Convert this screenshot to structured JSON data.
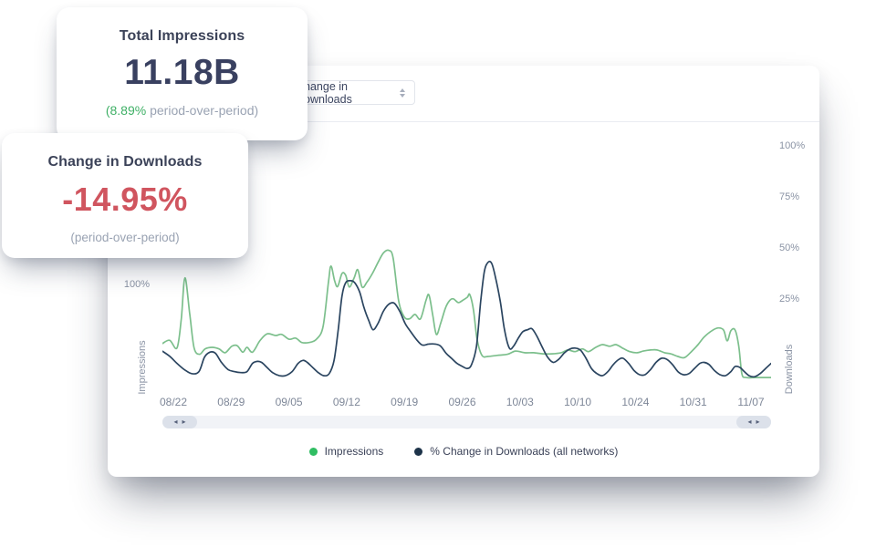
{
  "cards": {
    "impressions": {
      "title": "Total Impressions",
      "value": "11.18B",
      "delta_highlight": "(8.89%",
      "delta_rest": " period-over-period)"
    },
    "downloads": {
      "title": "Change in Downloads",
      "value": "-14.95%",
      "sub": "(period-over-period)"
    }
  },
  "panel": {
    "metric_select": {
      "value": "Change in Downloads"
    },
    "legend": [
      {
        "label": "Impressions",
        "color": "#2fbd62"
      },
      {
        "label": "% Change in Downloads (all networks)",
        "color": "#1d3349"
      }
    ],
    "scrollbar": {
      "arrows": [
        "◂",
        "▸"
      ]
    }
  },
  "chart_data": {
    "type": "line",
    "x_tick_labels": [
      "08/22",
      "08/29",
      "09/05",
      "09/12",
      "09/19",
      "09/26",
      "10/03",
      "10/10",
      "10/24",
      "10/31",
      "11/07"
    ],
    "axes": {
      "left": {
        "title": "Impressions",
        "unit": "%",
        "min": 0,
        "max": 237,
        "ticks": [
          {
            "value": 100,
            "label": "100%"
          }
        ]
      },
      "right": {
        "title": "Downloads",
        "unit": "%",
        "min": -20.5,
        "max": 104.5,
        "ticks": [
          {
            "value": 100,
            "label": "100%"
          },
          {
            "value": 75,
            "label": "75%"
          },
          {
            "value": 50,
            "label": "50%"
          },
          {
            "value": 25,
            "label": "25%"
          }
        ]
      }
    },
    "series": [
      {
        "name": "Impressions",
        "axis": "left",
        "color": "#7cbf8c",
        "points": [
          [
            0,
            45
          ],
          [
            1.2,
            48
          ],
          [
            2.4,
            41
          ],
          [
            3.1,
            68
          ],
          [
            3.7,
            106
          ],
          [
            4.5,
            72
          ],
          [
            5.2,
            41
          ],
          [
            6.1,
            35
          ],
          [
            7,
            40
          ],
          [
            8.2,
            41.5
          ],
          [
            9.3,
            40
          ],
          [
            10.3,
            36.5
          ],
          [
            11.4,
            42.5
          ],
          [
            12.3,
            43
          ],
          [
            13.2,
            37
          ],
          [
            13.9,
            41.5
          ],
          [
            14.8,
            37
          ],
          [
            16,
            47.5
          ],
          [
            17.2,
            54
          ],
          [
            18.6,
            52.5
          ],
          [
            19.6,
            53.5
          ],
          [
            20.8,
            49
          ],
          [
            21.9,
            50
          ],
          [
            22.9,
            46
          ],
          [
            24.1,
            46
          ],
          [
            25.3,
            49
          ],
          [
            26.4,
            61
          ],
          [
            27.3,
            103
          ],
          [
            27.7,
            117
          ],
          [
            28.3,
            103
          ],
          [
            28.8,
            98
          ],
          [
            29.5,
            110
          ],
          [
            30.1,
            108.5
          ],
          [
            30.7,
            97.5
          ],
          [
            31.5,
            106
          ],
          [
            32.1,
            113.5
          ],
          [
            32.8,
            97.5
          ],
          [
            33.6,
            102
          ],
          [
            34.5,
            110
          ],
          [
            35.4,
            120
          ],
          [
            36.3,
            129
          ],
          [
            37.2,
            131.5
          ],
          [
            37.9,
            124.5
          ],
          [
            38.8,
            85
          ],
          [
            39.7,
            70
          ],
          [
            40.6,
            68
          ],
          [
            41.5,
            72
          ],
          [
            42.4,
            68
          ],
          [
            43.3,
            85
          ],
          [
            43.8,
            90
          ],
          [
            44.4,
            72
          ],
          [
            45,
            53.5
          ],
          [
            45.7,
            63.5
          ],
          [
            46.5,
            78
          ],
          [
            47.2,
            85
          ],
          [
            47.8,
            86.5
          ],
          [
            48.6,
            83
          ],
          [
            49.3,
            85
          ],
          [
            50.1,
            88
          ],
          [
            50.5,
            90.5
          ],
          [
            51.1,
            76.5
          ],
          [
            51.7,
            49
          ],
          [
            52.5,
            34
          ],
          [
            53.5,
            33
          ],
          [
            55,
            34
          ],
          [
            56.7,
            35
          ],
          [
            58,
            38
          ],
          [
            59.5,
            36.5
          ],
          [
            61,
            36.5
          ],
          [
            62.5,
            35.5
          ],
          [
            64,
            35.5
          ],
          [
            65.5,
            36.5
          ],
          [
            66.6,
            39
          ],
          [
            67.8,
            37.5
          ],
          [
            69,
            40
          ],
          [
            70,
            37.5
          ],
          [
            71.2,
            41.5
          ],
          [
            72.3,
            44
          ],
          [
            73.5,
            42.5
          ],
          [
            74.5,
            44
          ],
          [
            75.7,
            40.5
          ],
          [
            76.8,
            37.5
          ],
          [
            78,
            36.5
          ],
          [
            79,
            38
          ],
          [
            80.2,
            39
          ],
          [
            81.3,
            39
          ],
          [
            82.5,
            36.5
          ],
          [
            83.5,
            35.5
          ],
          [
            84.7,
            33
          ],
          [
            85.8,
            32
          ],
          [
            87,
            38
          ],
          [
            88,
            44
          ],
          [
            89,
            51
          ],
          [
            90.3,
            57
          ],
          [
            91.3,
            59.5
          ],
          [
            92.2,
            57.5
          ],
          [
            92.8,
            47.5
          ],
          [
            93.4,
            57
          ],
          [
            94.1,
            57.5
          ],
          [
            94.7,
            42.5
          ],
          [
            95.2,
            17
          ],
          [
            95.9,
            13.5
          ],
          [
            97.4,
            13.5
          ],
          [
            98.9,
            13.5
          ],
          [
            100,
            13.5
          ]
        ]
      },
      {
        "name": "% Change in Downloads (all networks)",
        "axis": "right",
        "color": "#2b4560",
        "points": [
          [
            0,
            -0.5
          ],
          [
            1.2,
            -3
          ],
          [
            2.4,
            -6.5
          ],
          [
            3.6,
            -9.5
          ],
          [
            4.8,
            -11.5
          ],
          [
            6,
            -10.5
          ],
          [
            6.9,
            -3.5
          ],
          [
            7.8,
            -1
          ],
          [
            8.7,
            -1.5
          ],
          [
            9.7,
            -6
          ],
          [
            10.8,
            -9.5
          ],
          [
            11.8,
            -10.5
          ],
          [
            12.9,
            -11
          ],
          [
            13.9,
            -10.5
          ],
          [
            14.8,
            -6.5
          ],
          [
            15.6,
            -5.5
          ],
          [
            16.3,
            -6
          ],
          [
            17.2,
            -8.5
          ],
          [
            18.1,
            -11
          ],
          [
            19.2,
            -12.5
          ],
          [
            20.2,
            -12.5
          ],
          [
            21.3,
            -10.5
          ],
          [
            22.3,
            -6.5
          ],
          [
            23.1,
            -5
          ],
          [
            23.8,
            -6
          ],
          [
            24.7,
            -8.5
          ],
          [
            25.6,
            -11
          ],
          [
            26.5,
            -12.5
          ],
          [
            27.4,
            -11.5
          ],
          [
            28.2,
            -5
          ],
          [
            28.9,
            10.5
          ],
          [
            29.5,
            26.5
          ],
          [
            30.1,
            33
          ],
          [
            30.9,
            34
          ],
          [
            31.6,
            33
          ],
          [
            32.4,
            28.5
          ],
          [
            33.1,
            21
          ],
          [
            33.9,
            14.5
          ],
          [
            34.6,
            10
          ],
          [
            35.4,
            13
          ],
          [
            36.3,
            19
          ],
          [
            37.2,
            22.5
          ],
          [
            38.1,
            23
          ],
          [
            39,
            19
          ],
          [
            39.9,
            13
          ],
          [
            40.8,
            9
          ],
          [
            41.8,
            5
          ],
          [
            42.7,
            2.5
          ],
          [
            43.8,
            3
          ],
          [
            44.8,
            3
          ],
          [
            45.7,
            2
          ],
          [
            46.6,
            -1.5
          ],
          [
            47.5,
            -4
          ],
          [
            48.4,
            -6.5
          ],
          [
            49.3,
            -8
          ],
          [
            50.1,
            -9
          ],
          [
            50.8,
            -7
          ],
          [
            51.6,
            2
          ],
          [
            52.3,
            24
          ],
          [
            52.9,
            38.5
          ],
          [
            53.5,
            43
          ],
          [
            54.1,
            42.5
          ],
          [
            54.7,
            36
          ],
          [
            55.5,
            24
          ],
          [
            56.2,
            10
          ],
          [
            57,
            1
          ],
          [
            57.7,
            2
          ],
          [
            58.5,
            6
          ],
          [
            59.2,
            9
          ],
          [
            60,
            10
          ],
          [
            60.7,
            10.5
          ],
          [
            61.5,
            7
          ],
          [
            62.4,
            1.5
          ],
          [
            63.3,
            -3.5
          ],
          [
            64.2,
            -6
          ],
          [
            65.1,
            -4.5
          ],
          [
            66,
            -1.5
          ],
          [
            66.9,
            0.5
          ],
          [
            67.8,
            1
          ],
          [
            68.7,
            0
          ],
          [
            69.6,
            -4
          ],
          [
            70.5,
            -9
          ],
          [
            71.4,
            -11.5
          ],
          [
            72.3,
            -12.5
          ],
          [
            73.2,
            -10.5
          ],
          [
            74.1,
            -7
          ],
          [
            75,
            -4.5
          ],
          [
            75.7,
            -4
          ],
          [
            76.6,
            -6.5
          ],
          [
            77.5,
            -10
          ],
          [
            78.4,
            -12
          ],
          [
            79.3,
            -12
          ],
          [
            80.2,
            -9.5
          ],
          [
            81.1,
            -6
          ],
          [
            82,
            -4
          ],
          [
            82.9,
            -4.5
          ],
          [
            83.8,
            -7
          ],
          [
            84.7,
            -10.5
          ],
          [
            85.6,
            -12
          ],
          [
            86.5,
            -11.5
          ],
          [
            87.4,
            -9
          ],
          [
            88.3,
            -6.5
          ],
          [
            89,
            -6
          ],
          [
            89.8,
            -7
          ],
          [
            90.7,
            -10
          ],
          [
            91.6,
            -12
          ],
          [
            92.5,
            -12.5
          ],
          [
            93.4,
            -10.5
          ],
          [
            94.1,
            -8
          ],
          [
            94.9,
            -8.5
          ],
          [
            95.6,
            -10.5
          ],
          [
            96.4,
            -12.5
          ],
          [
            97.3,
            -13
          ],
          [
            98.2,
            -11.5
          ],
          [
            99.1,
            -9
          ],
          [
            100,
            -6.5
          ]
        ]
      }
    ]
  }
}
